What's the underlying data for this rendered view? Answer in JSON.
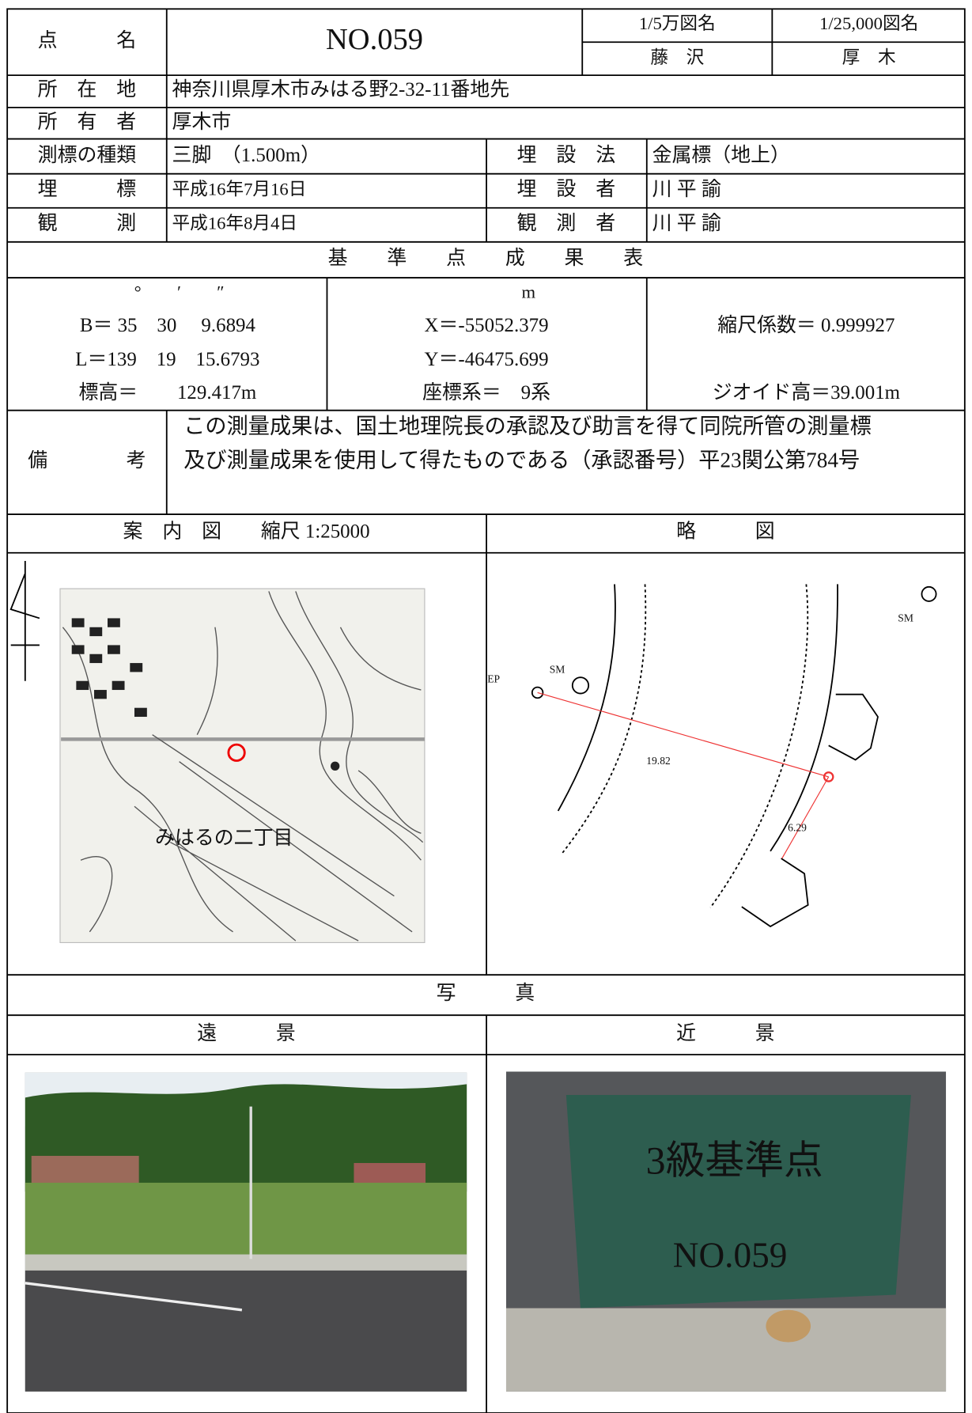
{
  "header": {
    "point_name_label": "点　　　名",
    "point_name": "NO.059",
    "map50k_label": "1/5万図名",
    "map25k_label": "1/25,000図名",
    "map50k": "藤　沢",
    "map25k": "厚　木"
  },
  "info": {
    "location_label": "所　在　地",
    "location": "神奈川県厚木市みはる野2-32-11番地先",
    "owner_label": "所　有　者",
    "owner": "厚木市",
    "marker_type_label": "測標の種類",
    "marker_type": "三脚　（1.500m）",
    "burial_method_label": "埋　設　法",
    "burial_method": "金属標（地上）",
    "burial_label": "埋　　　標",
    "burial_date": "平成16年7月16日",
    "burier_label": "埋　設　者",
    "burier": "川 平 諭",
    "observation_label": "観　　　測",
    "observation_date": "平成16年8月4日",
    "observer_label": "観　測　者",
    "observer": "川 平 諭"
  },
  "results": {
    "title": "基　　準　　点　　成　　果　　表",
    "dms_units": "°　　′　　″",
    "b": "B＝ 35　30　 9.6894",
    "l": "L＝139　19　15.6793",
    "elevation": "標高＝　　129.417m",
    "m_unit": "m",
    "x": "X＝-55052.379",
    "y": "Y＝-46475.699",
    "coord_system": "座標系＝　9系",
    "scale_factor": "縮尺係数＝ 0.999927",
    "geoid": "ジオイド高＝39.001m"
  },
  "remarks": {
    "label": "備　　　　考",
    "lines": [
      "この測量成果は、国土地理院長の承認及び助言を得て同院所管の測量標",
      "及び測量成果を使用して得たものである（承認番号）平23関公第784号"
    ]
  },
  "maps": {
    "guide_title": "案　内　図　　縮尺 1:25000",
    "sketch_title": "略　　　図",
    "guide_label": "みはるの二丁目",
    "sketch_labels": [
      "SM",
      "SM",
      "EP",
      "19.82",
      "6.29"
    ]
  },
  "photos": {
    "title": "写　　　真",
    "distant": "遠　　　景",
    "close": "近　　　景",
    "board_line1": "3級基準点",
    "board_line2": "NO.059"
  }
}
